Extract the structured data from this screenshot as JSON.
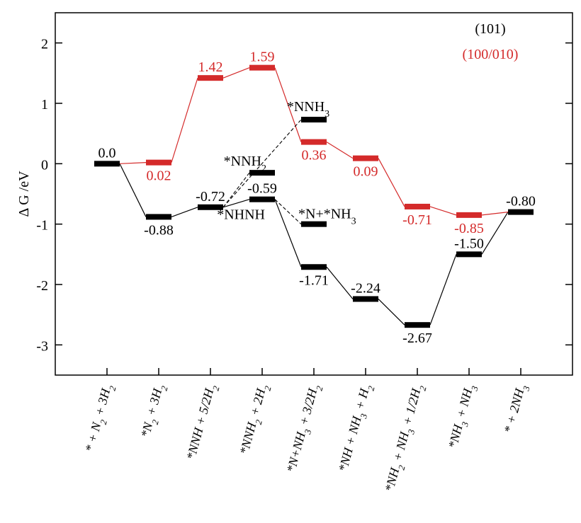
{
  "chart_data": {
    "type": "energy_diagram",
    "ylabel": "Δ G /eV",
    "ylim": [
      -3.5,
      2.5
    ],
    "yticks": [
      -3,
      -2,
      -1,
      0,
      1,
      2
    ],
    "categories": [
      "* + N2 + 3H2",
      "*N2 + 3H2",
      "*NNH + 5/2H2",
      "*NNH2 + 2H2",
      "*N+NH3 + 3/2H2",
      "*NH + NH3 + H2",
      "*NH2 + NH3 + 1/2H2",
      "*NH3 + NH3",
      "* + 2NH3"
    ],
    "series": [
      {
        "name": "(101)",
        "color": "#000000",
        "values": [
          0,
          -0.88,
          -0.72,
          -0.59,
          -1.71,
          -2.24,
          -2.67,
          -1.5,
          -0.8
        ],
        "value_labels": [
          "0.0",
          "-0.88",
          "-0.72",
          "-0.59",
          "-1.71",
          "-2.24",
          "-2.67",
          "-1.50",
          "-0.80"
        ],
        "label_pos": [
          "above",
          "below",
          "above",
          "above",
          "below",
          "above",
          "below",
          "above",
          "above"
        ]
      },
      {
        "name": "(100/010)",
        "color": "#d42a2a",
        "values": [
          null,
          0.02,
          1.42,
          1.59,
          0.36,
          0.09,
          -0.71,
          -0.85,
          null
        ],
        "label_pos": [
          null,
          "below",
          "above",
          "above",
          "below",
          "below",
          "below",
          "below",
          null
        ]
      }
    ],
    "branches": [
      {
        "label": "*NNH2",
        "category": 3,
        "value": -0.15
      },
      {
        "label": "*NNH3",
        "category": 4,
        "value": 0.73
      },
      {
        "label": "*N+*NH3",
        "category": 4,
        "value": -1.0
      }
    ],
    "state_label": "*NHNH"
  }
}
